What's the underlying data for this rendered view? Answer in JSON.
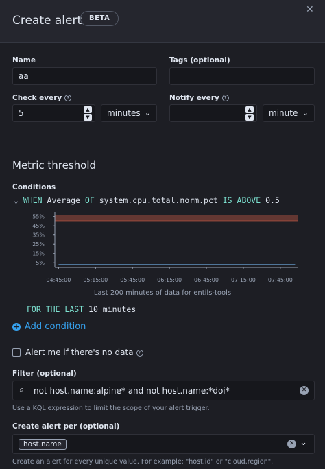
{
  "header": {
    "title": "Create alert",
    "badge": "BETA",
    "close_icon": "close-icon"
  },
  "form": {
    "name_label": "Name",
    "name_value": "aa",
    "tags_label": "Tags (optional)",
    "tags_value": "",
    "check_every_label": "Check every",
    "check_every_value": "5",
    "check_every_unit": "minutes",
    "notify_every_label": "Notify every",
    "notify_every_value": "",
    "notify_every_unit": "minute"
  },
  "section": {
    "title": "Metric threshold",
    "conditions_label": "Conditions"
  },
  "expression": {
    "when": "WHEN",
    "agg": "Average",
    "of": "OF",
    "metric": "system.cpu.total.norm.pct",
    "is_above": "IS ABOVE",
    "threshold": "0.5",
    "for_the_last": "FOR THE LAST",
    "duration": "10 minutes"
  },
  "chart_data": {
    "type": "line",
    "y_ticks": [
      "55%",
      "45%",
      "35%",
      "25%",
      "15%",
      "5%"
    ],
    "x_ticks": [
      "04:45:00",
      "05:15:00",
      "05:45:00",
      "06:15:00",
      "06:45:00",
      "07:15:00",
      "07:45:00"
    ],
    "ylim": [
      0,
      0.57
    ],
    "threshold": 0.5,
    "series": [
      {
        "x": [
          "04:45:00",
          "05:00:00",
          "05:15:00",
          "05:30:00",
          "05:45:00",
          "06:00:00",
          "06:15:00",
          "06:30:00",
          "06:45:00",
          "07:00:00",
          "07:15:00",
          "07:30:00",
          "07:45:00",
          "07:57:00"
        ],
        "values": [
          0.03,
          0.03,
          0.03,
          0.03,
          0.03,
          0.03,
          0.03,
          0.03,
          0.03,
          0.03,
          0.03,
          0.03,
          0.03,
          0.03
        ]
      }
    ],
    "caption": "Last 200 minutes of data for entils-tools",
    "colors": {
      "threshold": "#e7664c",
      "threshold_band": "#e7664c",
      "series": "#6092c0"
    }
  },
  "actions": {
    "add_condition": "Add condition",
    "no_data_label": "Alert me if there's no data",
    "no_data_checked": false
  },
  "filter": {
    "label": "Filter (optional)",
    "value": "not host.name:alpine* and not host.name:*doi*",
    "hint": "Use a KQL expression to limit the scope of your alert trigger."
  },
  "group_by": {
    "label": "Create alert per (optional)",
    "selected": "host.name",
    "hint": "Create an alert for every unique value. For example: \"host.id\" or \"cloud.region\"."
  }
}
